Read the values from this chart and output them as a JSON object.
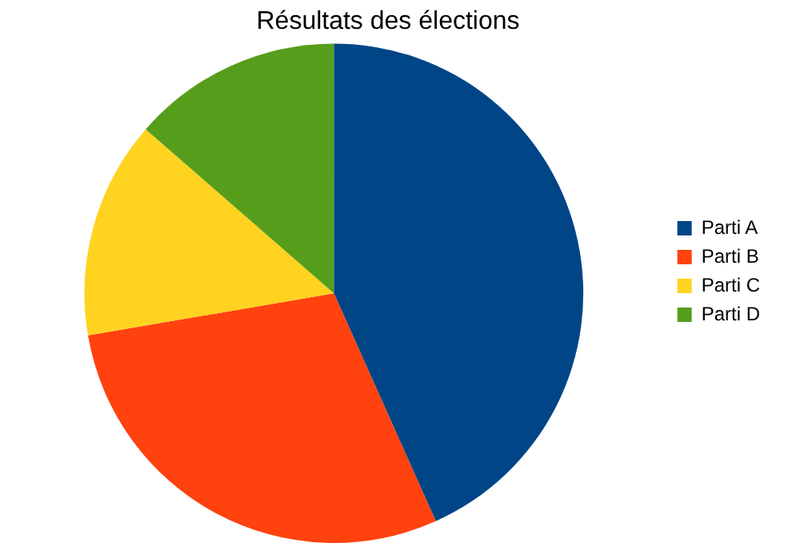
{
  "chart_data": {
    "type": "pie",
    "title": "Résultats des élections",
    "categories": [
      "Parti A",
      "Parti B",
      "Parti C",
      "Parti D"
    ],
    "values": [
      43.3,
      29.0,
      14.1,
      13.6
    ],
    "colors": [
      "#004586",
      "#ff420e",
      "#ffd320",
      "#579d1c"
    ],
    "legend": "right"
  }
}
